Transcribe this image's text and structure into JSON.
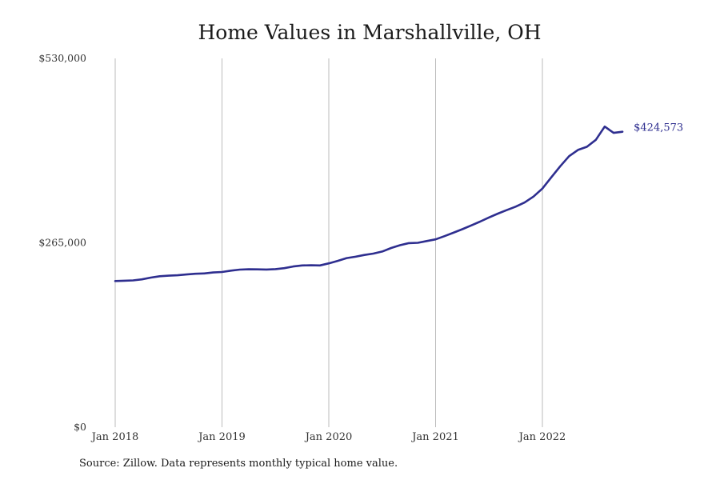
{
  "chart_data": {
    "type": "line",
    "title": "Home Values in Marshallville, OH",
    "source": "Source: Zillow. Data represents monthly typical home value.",
    "xlabel": "",
    "ylabel": "",
    "ylim": [
      0,
      530000
    ],
    "xlim": [
      "2018-01",
      "2022-12"
    ],
    "y_ticks": [
      {
        "value": 0,
        "label": "$0"
      },
      {
        "value": 265000,
        "label": "$265,000"
      },
      {
        "value": 530000,
        "label": "$530,000"
      }
    ],
    "x_ticks": [
      {
        "value": "2018-01",
        "label": "Jan 2018"
      },
      {
        "value": "2019-01",
        "label": "Jan 2019"
      },
      {
        "value": "2020-01",
        "label": "Jan 2020"
      },
      {
        "value": "2021-01",
        "label": "Jan 2021"
      },
      {
        "value": "2022-01",
        "label": "Jan 2022"
      }
    ],
    "grid": {
      "vertical": true,
      "horizontal": false
    },
    "line_color": "#2e2e8f",
    "grid_color": "#bbbbbb",
    "end_label": "$424,573",
    "series": [
      {
        "x": [
          "2018-01",
          "2018-02",
          "2018-03",
          "2018-04",
          "2018-05",
          "2018-06",
          "2018-07",
          "2018-08",
          "2018-09",
          "2018-10",
          "2018-11",
          "2018-12",
          "2019-01",
          "2019-02",
          "2019-03",
          "2019-04",
          "2019-05",
          "2019-06",
          "2019-07",
          "2019-08",
          "2019-09",
          "2019-10",
          "2019-11",
          "2019-12",
          "2020-01",
          "2020-02",
          "2020-03",
          "2020-04",
          "2020-05",
          "2020-06",
          "2020-07",
          "2020-08",
          "2020-09",
          "2020-10",
          "2020-11",
          "2020-12",
          "2021-01",
          "2021-02",
          "2021-03",
          "2021-04",
          "2021-05",
          "2021-06",
          "2021-07",
          "2021-08",
          "2021-09",
          "2021-10",
          "2021-11",
          "2021-12",
          "2022-01",
          "2022-02",
          "2022-03",
          "2022-04",
          "2022-05",
          "2022-06",
          "2022-07",
          "2022-08",
          "2022-09",
          "2022-10"
        ],
        "values": [
          210000,
          210500,
          211000,
          212500,
          215000,
          217000,
          217800,
          218300,
          219500,
          220500,
          221000,
          222300,
          223000,
          225000,
          226500,
          227000,
          226800,
          226600,
          227200,
          228500,
          231000,
          232500,
          232700,
          232500,
          235500,
          239000,
          243000,
          245000,
          247500,
          249500,
          252500,
          257500,
          261500,
          264500,
          265000,
          267500,
          270000,
          274500,
          279500,
          284500,
          290000,
          295500,
          301500,
          307000,
          312000,
          317000,
          323000,
          331500,
          343000,
          359000,
          375000,
          389500,
          398500,
          403000,
          413000,
          432000,
          423000,
          424573
        ]
      }
    ]
  }
}
